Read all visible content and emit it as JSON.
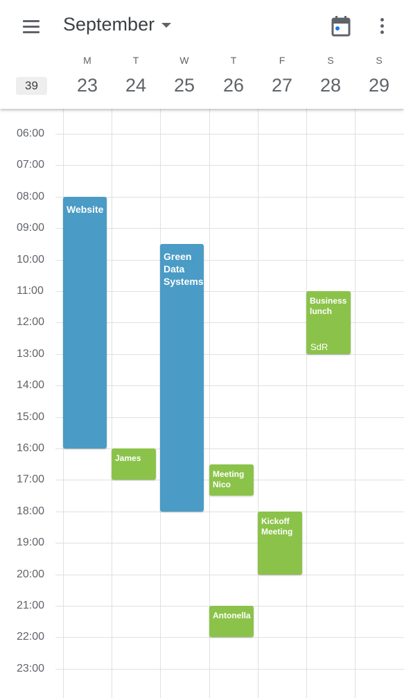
{
  "header": {
    "month": "September",
    "week_number": "39",
    "days": [
      {
        "letter": "M",
        "num": "23"
      },
      {
        "letter": "T",
        "num": "24"
      },
      {
        "letter": "W",
        "num": "25"
      },
      {
        "letter": "T",
        "num": "26"
      },
      {
        "letter": "F",
        "num": "27"
      },
      {
        "letter": "S",
        "num": "28"
      },
      {
        "letter": "S",
        "num": "29"
      }
    ]
  },
  "hours": [
    "06:00",
    "07:00",
    "08:00",
    "09:00",
    "10:00",
    "11:00",
    "12:00",
    "13:00",
    "14:00",
    "15:00",
    "16:00",
    "17:00",
    "18:00",
    "19:00",
    "20:00",
    "21:00",
    "22:00",
    "23:00"
  ],
  "colors": {
    "blue_event": "#4a9bc5",
    "green_event": "#8bc34a",
    "today_dot": "#1a73e8"
  },
  "events": [
    {
      "title": "Website",
      "day": 0,
      "start": "08:00",
      "end": "16:00",
      "color": "blue"
    },
    {
      "title": "James",
      "day": 1,
      "start": "16:00",
      "end": "17:00",
      "color": "green"
    },
    {
      "title": "Green Data Systems",
      "day": 2,
      "start": "09:30",
      "end": "18:00",
      "color": "blue"
    },
    {
      "title": "Meeting Nico",
      "day": 3,
      "start": "16:30",
      "end": "17:30",
      "color": "green"
    },
    {
      "title": "Kickoff Meeting",
      "day": 4,
      "start": "18:00",
      "end": "20:00",
      "color": "green"
    },
    {
      "title": "Business lunch",
      "location": "SdR",
      "day": 5,
      "start": "11:00",
      "end": "13:00",
      "color": "green"
    },
    {
      "title": "Antonella",
      "day": 3,
      "start": "21:00",
      "end": "22:00",
      "color": "green"
    }
  ]
}
